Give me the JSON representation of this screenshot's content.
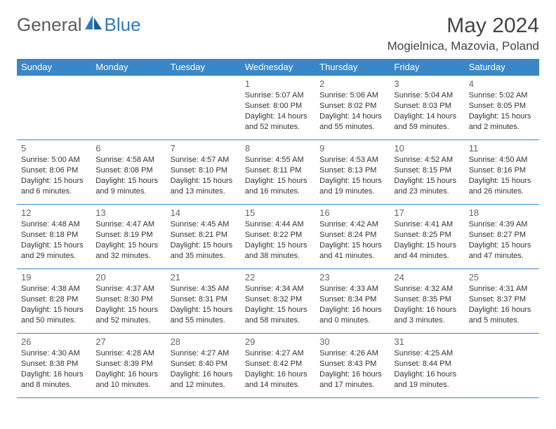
{
  "brand": {
    "part1": "General",
    "part2": "Blue"
  },
  "title": "May 2024",
  "location": "Mogielnica, Mazovia, Poland",
  "colors": {
    "accent": "#3a87c8",
    "brand_blue": "#2f7abf",
    "text": "#333333",
    "daynum": "#666666",
    "bg": "#ffffff"
  },
  "weekdays": [
    "Sunday",
    "Monday",
    "Tuesday",
    "Wednesday",
    "Thursday",
    "Friday",
    "Saturday"
  ],
  "days": [
    {
      "n": "1",
      "sr": "5:07 AM",
      "ss": "8:00 PM",
      "dl": "14 hours and 52 minutes."
    },
    {
      "n": "2",
      "sr": "5:06 AM",
      "ss": "8:02 PM",
      "dl": "14 hours and 55 minutes."
    },
    {
      "n": "3",
      "sr": "5:04 AM",
      "ss": "8:03 PM",
      "dl": "14 hours and 59 minutes."
    },
    {
      "n": "4",
      "sr": "5:02 AM",
      "ss": "8:05 PM",
      "dl": "15 hours and 2 minutes."
    },
    {
      "n": "5",
      "sr": "5:00 AM",
      "ss": "8:06 PM",
      "dl": "15 hours and 6 minutes."
    },
    {
      "n": "6",
      "sr": "4:58 AM",
      "ss": "8:08 PM",
      "dl": "15 hours and 9 minutes."
    },
    {
      "n": "7",
      "sr": "4:57 AM",
      "ss": "8:10 PM",
      "dl": "15 hours and 13 minutes."
    },
    {
      "n": "8",
      "sr": "4:55 AM",
      "ss": "8:11 PM",
      "dl": "15 hours and 16 minutes."
    },
    {
      "n": "9",
      "sr": "4:53 AM",
      "ss": "8:13 PM",
      "dl": "15 hours and 19 minutes."
    },
    {
      "n": "10",
      "sr": "4:52 AM",
      "ss": "8:15 PM",
      "dl": "15 hours and 23 minutes."
    },
    {
      "n": "11",
      "sr": "4:50 AM",
      "ss": "8:16 PM",
      "dl": "15 hours and 26 minutes."
    },
    {
      "n": "12",
      "sr": "4:48 AM",
      "ss": "8:18 PM",
      "dl": "15 hours and 29 minutes."
    },
    {
      "n": "13",
      "sr": "4:47 AM",
      "ss": "8:19 PM",
      "dl": "15 hours and 32 minutes."
    },
    {
      "n": "14",
      "sr": "4:45 AM",
      "ss": "8:21 PM",
      "dl": "15 hours and 35 minutes."
    },
    {
      "n": "15",
      "sr": "4:44 AM",
      "ss": "8:22 PM",
      "dl": "15 hours and 38 minutes."
    },
    {
      "n": "16",
      "sr": "4:42 AM",
      "ss": "8:24 PM",
      "dl": "15 hours and 41 minutes."
    },
    {
      "n": "17",
      "sr": "4:41 AM",
      "ss": "8:25 PM",
      "dl": "15 hours and 44 minutes."
    },
    {
      "n": "18",
      "sr": "4:39 AM",
      "ss": "8:27 PM",
      "dl": "15 hours and 47 minutes."
    },
    {
      "n": "19",
      "sr": "4:38 AM",
      "ss": "8:28 PM",
      "dl": "15 hours and 50 minutes."
    },
    {
      "n": "20",
      "sr": "4:37 AM",
      "ss": "8:30 PM",
      "dl": "15 hours and 52 minutes."
    },
    {
      "n": "21",
      "sr": "4:35 AM",
      "ss": "8:31 PM",
      "dl": "15 hours and 55 minutes."
    },
    {
      "n": "22",
      "sr": "4:34 AM",
      "ss": "8:32 PM",
      "dl": "15 hours and 58 minutes."
    },
    {
      "n": "23",
      "sr": "4:33 AM",
      "ss": "8:34 PM",
      "dl": "16 hours and 0 minutes."
    },
    {
      "n": "24",
      "sr": "4:32 AM",
      "ss": "8:35 PM",
      "dl": "16 hours and 3 minutes."
    },
    {
      "n": "25",
      "sr": "4:31 AM",
      "ss": "8:37 PM",
      "dl": "16 hours and 5 minutes."
    },
    {
      "n": "26",
      "sr": "4:30 AM",
      "ss": "8:38 PM",
      "dl": "16 hours and 8 minutes."
    },
    {
      "n": "27",
      "sr": "4:28 AM",
      "ss": "8:39 PM",
      "dl": "16 hours and 10 minutes."
    },
    {
      "n": "28",
      "sr": "4:27 AM",
      "ss": "8:40 PM",
      "dl": "16 hours and 12 minutes."
    },
    {
      "n": "29",
      "sr": "4:27 AM",
      "ss": "8:42 PM",
      "dl": "16 hours and 14 minutes."
    },
    {
      "n": "30",
      "sr": "4:26 AM",
      "ss": "8:43 PM",
      "dl": "16 hours and 17 minutes."
    },
    {
      "n": "31",
      "sr": "4:25 AM",
      "ss": "8:44 PM",
      "dl": "16 hours and 19 minutes."
    }
  ],
  "labels": {
    "sunrise": "Sunrise:",
    "sunset": "Sunset:",
    "daylight": "Daylight:"
  },
  "layout": {
    "first_weekday_index": 3,
    "rows": 5,
    "cols": 7
  }
}
